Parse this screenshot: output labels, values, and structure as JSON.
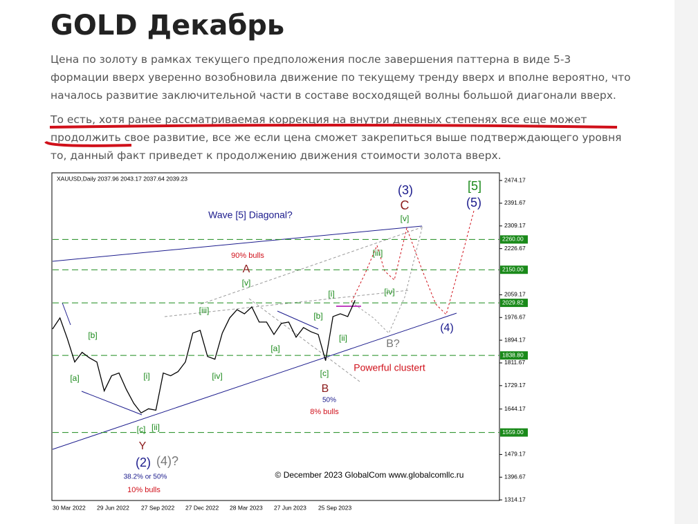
{
  "header": {
    "title": "GOLD Декабрь"
  },
  "paragraphs": [
    "Цена по золоту в рамках текущего предположения после завершения паттерна в виде 5-3 формации вверх уверенно возобновила движение по текущему тренду вверх и вполне вероятно, что началось развитие заключительной части в составе восходящей волны большой диагонали вверх.",
    "То есть, хотя ранее рассматриваемая коррекция на внутри дневных степенях все еще может продолжить свое развитие, все же если цена сможет закрепиться выше подтверждающего уровня то, данный факт приведет к продолжению движения стоимости золота вверх."
  ],
  "chart_data": {
    "type": "line",
    "title": "XAUUSD,Daily  2037.96 2043.17 2037.64 2039.23",
    "categories": [
      "30 Mar 2022",
      null,
      null,
      null,
      null,
      null,
      "29 Jun 2022",
      null,
      null,
      null,
      null,
      null,
      "27 Sep 2022",
      null,
      null,
      null,
      null,
      null,
      "27 Dec 2022",
      null,
      null,
      null,
      null,
      null,
      "28 Mar 2023",
      null,
      null,
      null,
      null,
      null,
      "27 Jun 2023",
      null,
      null,
      null,
      null,
      null,
      "25 Sep 2023",
      null,
      null,
      null,
      null,
      null
    ],
    "series": [
      {
        "name": "XAUUSD",
        "color": "#000000",
        "values": [
          1935,
          1975,
          1900,
          1815,
          1850,
          1830,
          1815,
          1710,
          1765,
          1775,
          1715,
          1665,
          1630,
          1645,
          1640,
          1775,
          1765,
          1780,
          1815,
          1920,
          1930,
          1835,
          1825,
          1920,
          1975,
          2005,
          1990,
          2015,
          1960,
          1960,
          1915,
          1955,
          1960,
          1905,
          1940,
          1925,
          1915,
          1820,
          1980,
          1990,
          1980,
          2039.23
        ]
      }
    ],
    "ylim": [
      1312,
      2502
    ],
    "yticks": [
      2474.17,
      2391.67,
      2309.17,
      2226.67,
      2059.17,
      1976.67,
      1894.17,
      1811.67,
      1729.17,
      1644.17,
      1479.17,
      1396.67,
      1314.17
    ],
    "levels": [
      {
        "value": 2260,
        "label": "2260.00"
      },
      {
        "value": 2150,
        "label": "2150.00"
      },
      {
        "value": 2029.82,
        "label": "2029.82"
      },
      {
        "value": 1838.8,
        "label": "1838.80"
      },
      {
        "value": 1559,
        "label": "1559.00"
      }
    ],
    "level_color": "#1a8a1a",
    "annotations": [
      "Wave [5] Diagonal?",
      "90% bulls",
      "A",
      "[v]",
      "[iii]",
      "[b]",
      "[a]",
      "[i]",
      "[iv]",
      "[c]",
      "[ii]",
      "Y",
      "(2)",
      "(4)?",
      "38.2% or 50%",
      "10% bulls",
      "[a]",
      "[b]",
      "[c]",
      "B",
      "50%",
      "8% bulls",
      "[i]",
      "[ii]",
      "[iii]",
      "[iv]",
      "[v]",
      "Powerful clustert",
      "B?",
      "(3)",
      "C",
      "[5]",
      "(5)",
      "(4)",
      "© December 2023 GlobalCom www.globalcomllc.ru"
    ]
  }
}
